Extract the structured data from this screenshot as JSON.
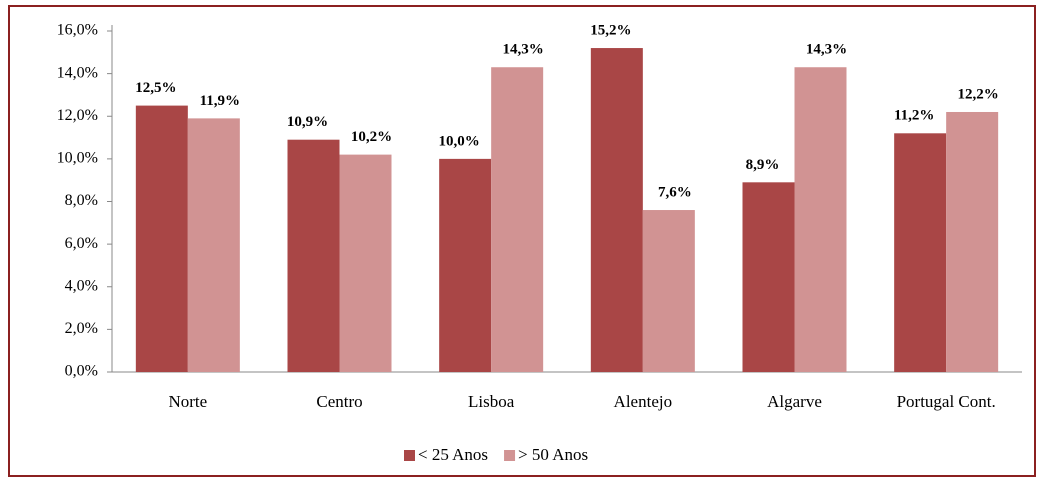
{
  "chart_data": {
    "type": "bar",
    "categories": [
      "Norte",
      "Centro",
      "Lisboa",
      "Alentejo",
      "Algarve",
      "Portugal Cont."
    ],
    "series": [
      {
        "name": "< 25 Anos",
        "color": "#a94646",
        "values": [
          12.5,
          10.9,
          10.0,
          15.2,
          8.9,
          11.2
        ],
        "value_labels": [
          "12,5%",
          "10,9%",
          "10,0%",
          "15,2%",
          "8,9%",
          "11,2%"
        ]
      },
      {
        "name": "> 50 Anos",
        "color": "#d19393",
        "values": [
          11.9,
          10.2,
          14.3,
          7.6,
          14.3,
          12.2
        ],
        "value_labels": [
          "11,9%",
          "10,2%",
          "14,3%",
          "7,6%",
          "14,3%",
          "12,2%"
        ]
      }
    ],
    "ylim": [
      0,
      16
    ],
    "yticks": [
      {
        "value": 0,
        "label": "0,0%"
      },
      {
        "value": 2,
        "label": "2,0%"
      },
      {
        "value": 4,
        "label": "4,0%"
      },
      {
        "value": 6,
        "label": "6,0%"
      },
      {
        "value": 8,
        "label": "8,0%"
      },
      {
        "value": 10,
        "label": "10,0%"
      },
      {
        "value": 12,
        "label": "12,0%"
      },
      {
        "value": 14,
        "label": "14,0%"
      },
      {
        "value": 16,
        "label": "16,0%"
      }
    ],
    "legend": "bottom"
  }
}
